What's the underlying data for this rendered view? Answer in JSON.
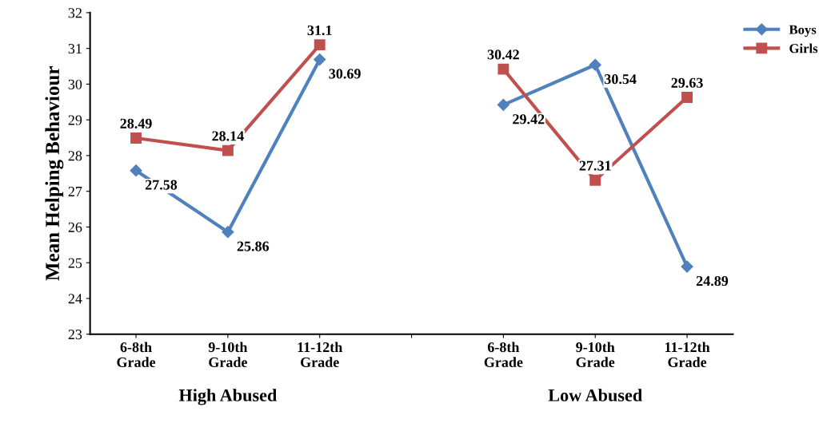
{
  "chart_data": {
    "type": "line",
    "ylabel": "Mean Helping Behaviour",
    "categories": [
      "6-8th\nGrade",
      "9-10th\nGrade",
      "11-12th\nGrade",
      null,
      "6-8th\nGrade",
      "9-10th\nGrade",
      "11-12th\nGrade"
    ],
    "series": [
      {
        "name": "Boys",
        "color": "#4f81bd",
        "marker": "diamond",
        "values": [
          27.58,
          25.86,
          30.69,
          null,
          29.42,
          30.54,
          24.89
        ]
      },
      {
        "name": "Girls",
        "color": "#c0504d",
        "marker": "square",
        "values": [
          28.49,
          28.14,
          31.1,
          null,
          30.42,
          27.31,
          29.63
        ]
      }
    ],
    "ylim": [
      23,
      32
    ],
    "yticks": [
      23,
      24,
      25,
      26,
      27,
      28,
      29,
      30,
      31,
      32
    ],
    "grid": false,
    "legend": "top right",
    "data_labels": true,
    "line_style": "solid",
    "annotations": [
      "High Abused",
      "Low Abused"
    ]
  }
}
